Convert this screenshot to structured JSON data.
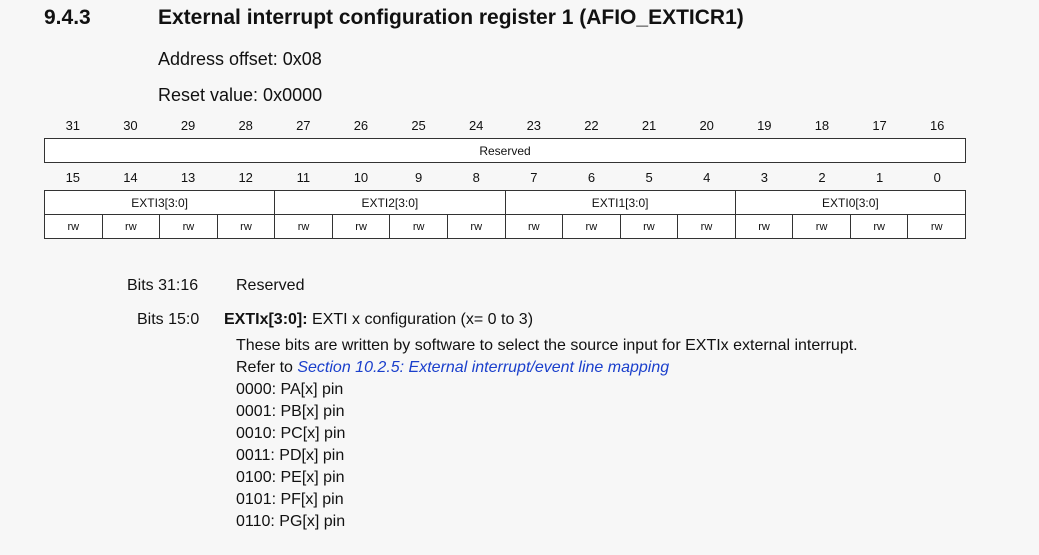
{
  "section": {
    "number": "9.4.3",
    "title": "External interrupt configuration register 1 (AFIO_EXTICR1)",
    "address_offset": "Address offset: 0x08",
    "reset_value": "Reset value: 0x0000"
  },
  "register": {
    "upper_bit_numbers": [
      "31",
      "30",
      "29",
      "28",
      "27",
      "26",
      "25",
      "24",
      "23",
      "22",
      "21",
      "20",
      "19",
      "18",
      "17",
      "16"
    ],
    "upper_field": "Reserved",
    "lower_bit_numbers": [
      "15",
      "14",
      "13",
      "12",
      "11",
      "10",
      "9",
      "8",
      "7",
      "6",
      "5",
      "4",
      "3",
      "2",
      "1",
      "0"
    ],
    "lower_fields": [
      "EXTI3[3:0]",
      "EXTI2[3:0]",
      "EXTI1[3:0]",
      "EXTI0[3:0]"
    ],
    "access": [
      "rw",
      "rw",
      "rw",
      "rw",
      "rw",
      "rw",
      "rw",
      "rw",
      "rw",
      "rw",
      "rw",
      "rw",
      "rw",
      "rw",
      "rw",
      "rw"
    ]
  },
  "description": {
    "bits_reserved_label": "Bits 31:16",
    "bits_reserved_value": "Reserved",
    "bits_field_label": "Bits 15:0",
    "field_name": "EXTIx[3:0]:",
    "field_summary": " EXTI x configuration (x= 0 to 3)",
    "line1": "These bits are written by software to select the source input for EXTIx external interrupt.",
    "refer_prefix": "Refer to ",
    "refer_link": "Section 10.2.5: External interrupt/event line mapping",
    "options": [
      "0000: PA[x] pin",
      "0001: PB[x] pin",
      "0010: PC[x] pin",
      "0011: PD[x] pin",
      "0100: PE[x] pin",
      "0101: PF[x] pin",
      "0110: PG[x] pin"
    ]
  }
}
